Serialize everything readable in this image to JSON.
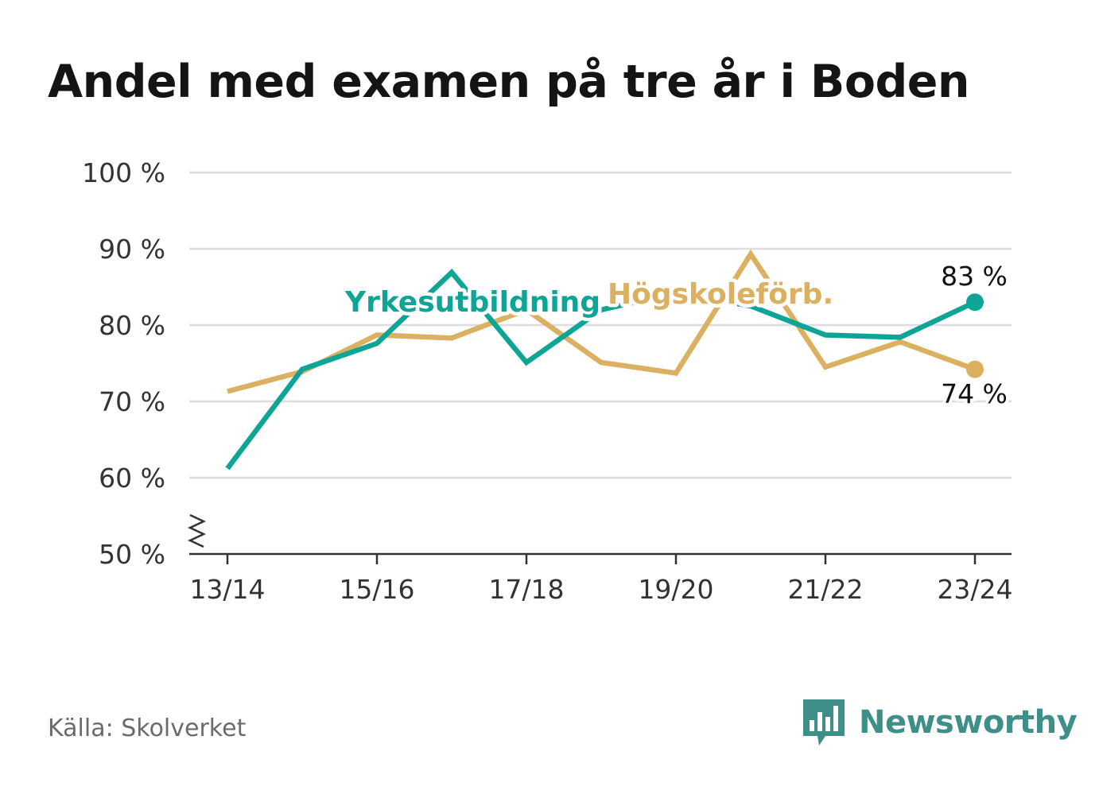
{
  "header": {
    "title": "Andel med examen på tre år i Boden"
  },
  "footer": {
    "source": "Källa: Skolverket",
    "brand": "Newsworthy"
  },
  "colors": {
    "teal": "#0ea596",
    "gold": "#dbb060",
    "grid": "#dddddd",
    "axis": "#333333"
  },
  "chart_data": {
    "type": "line",
    "x": [
      "13/14",
      "14/15",
      "15/16",
      "16/17",
      "17/18",
      "18/19",
      "19/20",
      "20/21",
      "21/22",
      "22/23",
      "23/24"
    ],
    "x_tick_labels": [
      "13/14",
      "15/16",
      "17/18",
      "19/20",
      "21/22",
      "23/24"
    ],
    "y_tick_labels": [
      "100 %",
      "90 %",
      "80 %",
      "70 %",
      "60 %",
      "50 %"
    ],
    "y_ticks": [
      100,
      90,
      80,
      70,
      60,
      50
    ],
    "ylim": [
      50,
      100
    ],
    "y_axis_break": true,
    "grid": true,
    "series": [
      {
        "name": "Yrkesutbildning",
        "color": "#0ea596",
        "values": [
          61.2,
          74.2,
          77.6,
          86.9,
          75.1,
          82.0,
          84.2,
          82.5,
          78.7,
          78.4,
          83.0
        ],
        "end_label": "83 %"
      },
      {
        "name": "Högskoleförb.",
        "color": "#dbb060",
        "values": [
          71.3,
          73.9,
          78.7,
          78.3,
          82.0,
          75.1,
          73.7,
          89.3,
          74.5,
          77.8,
          74.2
        ],
        "end_label": "74 %"
      }
    ]
  }
}
